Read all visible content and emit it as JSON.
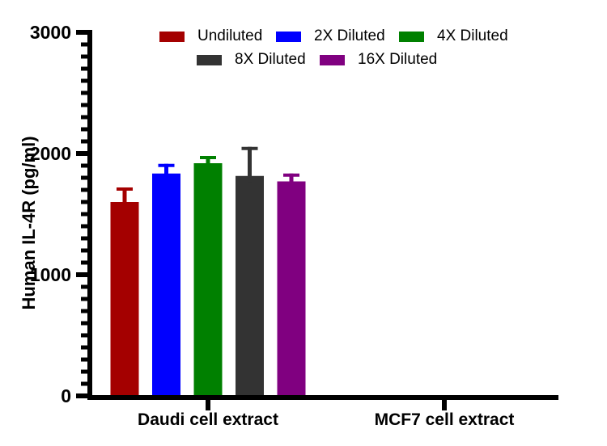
{
  "chart_data": {
    "type": "bar",
    "title": "",
    "xlabel": "",
    "ylabel": "Human IL-4R (pg/ml)",
    "ylim": [
      0,
      3000
    ],
    "yticks": [
      0,
      1000,
      2000,
      3000
    ],
    "minor_tick_step": 100,
    "grid": false,
    "legend_position": "top",
    "error_bars": "upper only, SD caps",
    "categories": [
      "Daudi cell extract",
      "MCF7 cell extract"
    ],
    "series": [
      {
        "name": "Undiluted",
        "color": "#A40000",
        "values": [
          1600,
          0
        ],
        "errors_plus": [
          120,
          0
        ]
      },
      {
        "name": "2X Diluted",
        "color": "#0000FF",
        "values": [
          1835,
          0
        ],
        "errors_plus": [
          80,
          0
        ]
      },
      {
        "name": "4X Diluted",
        "color": "#008000",
        "values": [
          1920,
          0
        ],
        "errors_plus": [
          60,
          0
        ]
      },
      {
        "name": "8X Diluted",
        "color": "#333333",
        "values": [
          1815,
          0
        ],
        "errors_plus": [
          240,
          0
        ]
      },
      {
        "name": "16X Diluted",
        "color": "#800080",
        "values": [
          1770,
          0
        ],
        "errors_plus": [
          65,
          0
        ]
      }
    ],
    "axis_color": "#000000",
    "background_color": "#FFFFFF"
  }
}
